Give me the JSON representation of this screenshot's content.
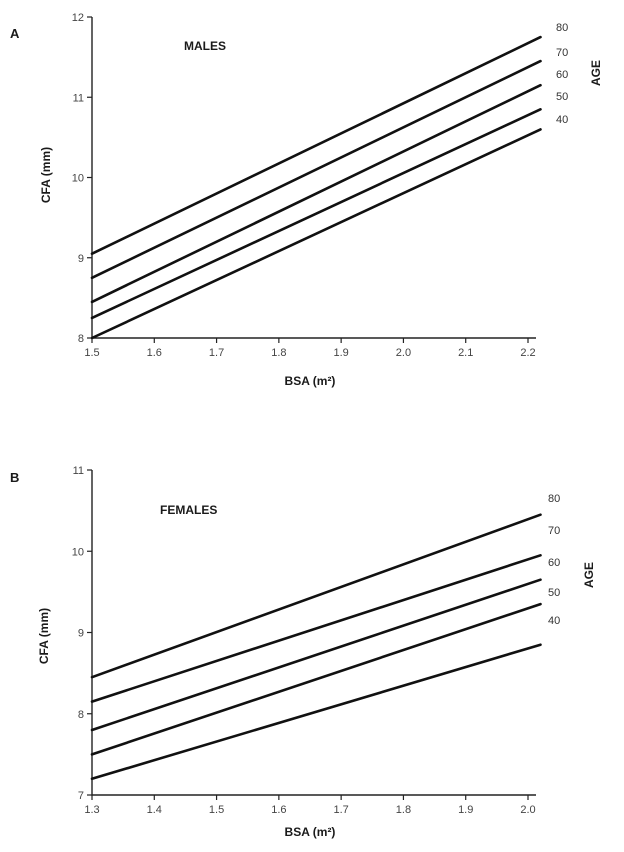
{
  "chart_data": [
    {
      "type": "line",
      "panel_label": "A",
      "group_label": "MALES",
      "xlabel": "BSA (m²)",
      "ylabel": "CFA (mm)",
      "legend_title": "AGE",
      "xlim": [
        1.5,
        2.2
      ],
      "ylim": [
        8,
        12
      ],
      "xticks": [
        "1.5",
        "1.6",
        "1.7",
        "1.8",
        "1.9",
        "2.0",
        "2.1",
        "2.2"
      ],
      "yticks": [
        "8",
        "9",
        "10",
        "11",
        "12"
      ],
      "x": [
        1.5,
        2.22
      ],
      "series": [
        {
          "name": "80",
          "values": [
            9.05,
            11.75
          ]
        },
        {
          "name": "70",
          "values": [
            8.75,
            11.45
          ]
        },
        {
          "name": "60",
          "values": [
            8.45,
            11.15
          ]
        },
        {
          "name": "50",
          "values": [
            8.25,
            10.85
          ]
        },
        {
          "name": "40",
          "values": [
            8.0,
            10.6
          ]
        }
      ]
    },
    {
      "type": "line",
      "panel_label": "B",
      "group_label": "FEMALES",
      "xlabel": "BSA (m²)",
      "ylabel": "CFA (mm)",
      "legend_title": "AGE",
      "xlim": [
        1.3,
        2.0
      ],
      "ylim": [
        7,
        11
      ],
      "xticks": [
        "1.3",
        "1.4",
        "1.5",
        "1.6",
        "1.7",
        "1.8",
        "1.9",
        "2.0"
      ],
      "yticks": [
        "7",
        "8",
        "9",
        "10",
        "11"
      ],
      "x": [
        1.3,
        2.02
      ],
      "series": [
        {
          "name": "80",
          "values": [
            8.45,
            10.45
          ]
        },
        {
          "name": "70",
          "values": [
            8.15,
            9.95
          ]
        },
        {
          "name": "60",
          "values": [
            7.8,
            9.65
          ]
        },
        {
          "name": "50",
          "values": [
            7.5,
            9.35
          ]
        },
        {
          "name": "40",
          "values": [
            7.2,
            8.85
          ]
        }
      ]
    }
  ]
}
